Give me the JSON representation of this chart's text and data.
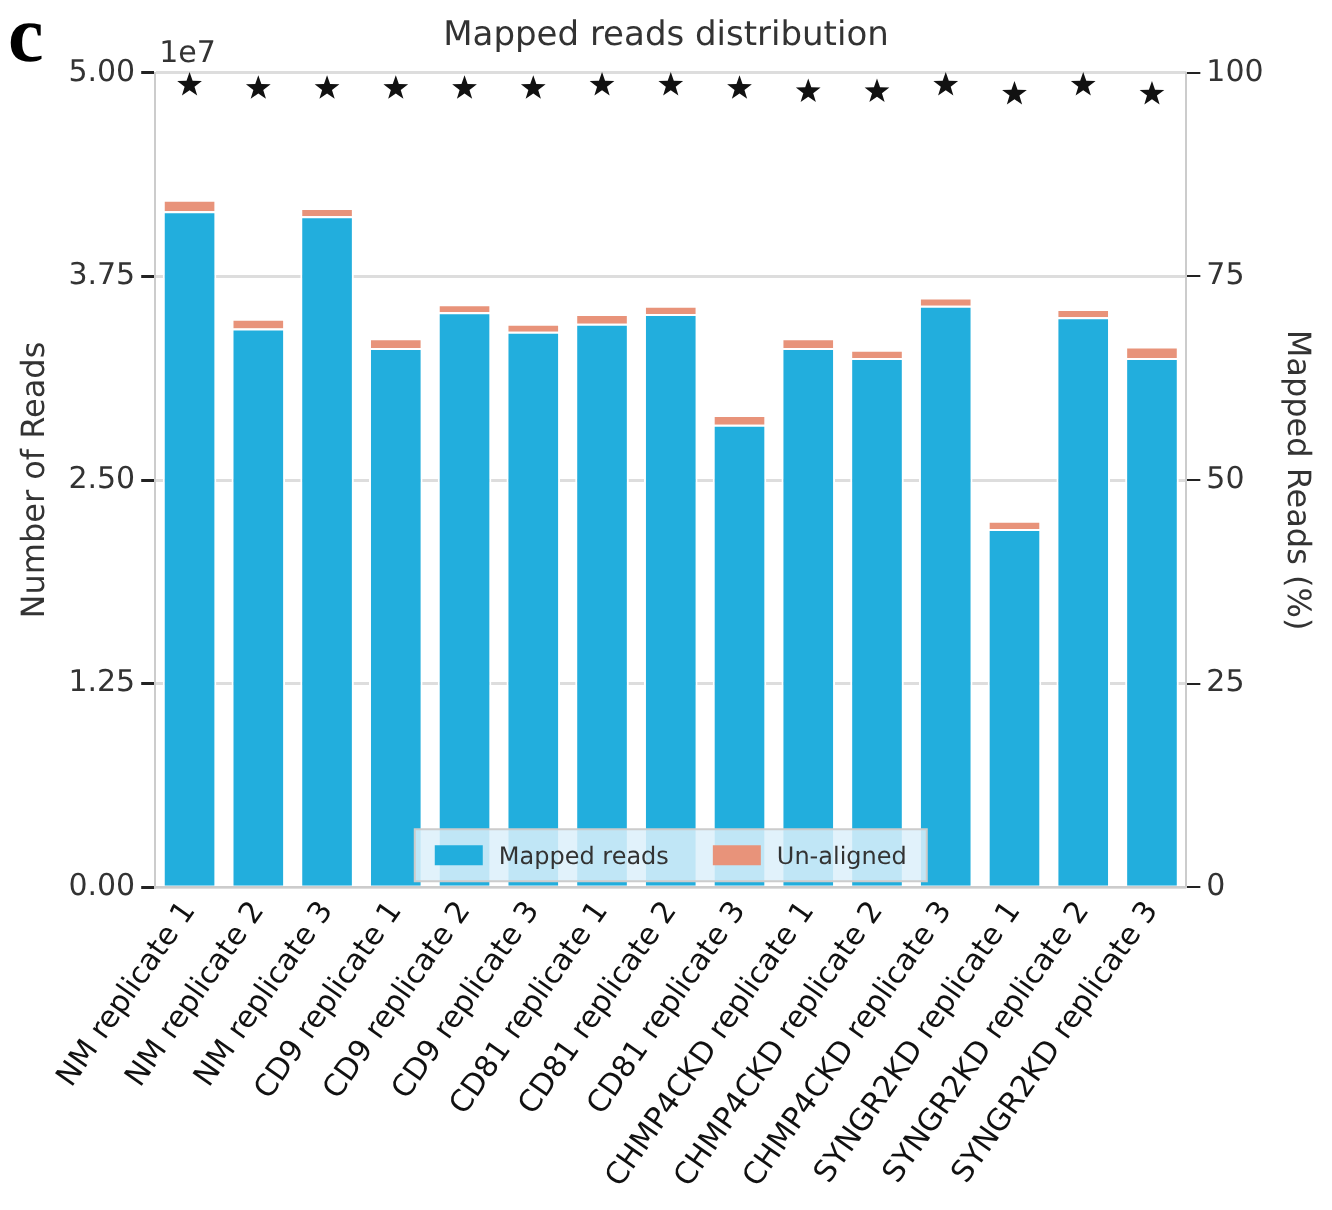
{
  "chart_data": {
    "type": "bar",
    "title": "Mapped reads distribution",
    "ylabel": "Number of Reads",
    "y2label": "Mapped Reads (%)",
    "annotations": [
      "c",
      "1e7"
    ],
    "categories": [
      "NM replicate 1",
      "NM replicate 2",
      "NM replicate 3",
      "CD9 replicate 1",
      "CD9 replicate 2",
      "CD9 replicate 3",
      "CD81 replicate 1",
      "CD81 replicate 2",
      "CD81 replicate 3",
      "CHMP4CKD replicate 1",
      "CHMP4CKD replicate 2",
      "CHMP4CKD replicate 3",
      "SYNGR2KD replicate 1",
      "SYNGR2KD replicate 2",
      "SYNGR2KD replicate 3"
    ],
    "stacked": true,
    "series": [
      {
        "name": "Mapped reads",
        "color": "#22aedd",
        "values": [
          4.15,
          3.43,
          4.12,
          3.31,
          3.53,
          3.41,
          3.46,
          3.52,
          2.84,
          3.31,
          3.25,
          3.57,
          2.2,
          3.5,
          3.25
        ]
      },
      {
        "name": "Un-aligned",
        "color": "#e8937a",
        "values": [
          0.07,
          0.06,
          0.05,
          0.06,
          0.05,
          0.05,
          0.06,
          0.05,
          0.06,
          0.06,
          0.05,
          0.05,
          0.05,
          0.05,
          0.07
        ]
      },
      {
        "type": "scatter",
        "axis": "y2",
        "color": "#111111",
        "x": [
          "NM replicate 1",
          "NM replicate 2",
          "NM replicate 3",
          "CD9 replicate 1",
          "CD9 replicate 2",
          "CD9 replicate 3",
          "CD81 replicate 1",
          "CD81 replicate 2",
          "CD81 replicate 3",
          "CHMP4CKD replicate 1",
          "CHMP4CKD replicate 2",
          "CHMP4CKD replicate 3",
          "SYNGR2KD replicate 1",
          "SYNGR2KD replicate 2",
          "SYNGR2KD replicate 3"
        ],
        "values": [
          98.5,
          98.1,
          98.1,
          98.1,
          98.1,
          98.1,
          98.5,
          98.5,
          98.1,
          97.7,
          97.7,
          98.5,
          97.4,
          98.5,
          97.4
        ]
      }
    ],
    "ylim": [
      0,
      5
    ],
    "yticks": [
      {
        "value": 0,
        "label": "0.00"
      },
      {
        "value": 1.25,
        "label": "1.25"
      },
      {
        "value": 2.5,
        "label": "2.50"
      },
      {
        "value": 3.75,
        "label": "3.75"
      },
      {
        "value": 5,
        "label": "5.00"
      }
    ],
    "y2lim": [
      0,
      100
    ],
    "y2ticks": [
      0,
      25,
      50,
      75,
      100
    ],
    "grid": "y",
    "legend": "bottom",
    "marker": "star"
  }
}
